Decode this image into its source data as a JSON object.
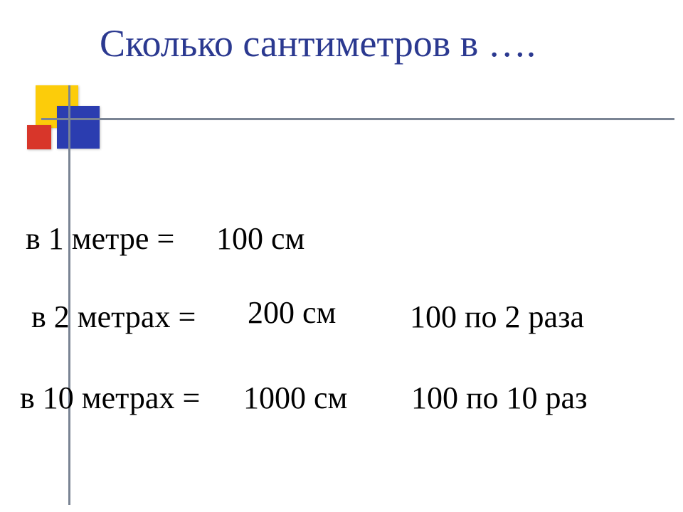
{
  "title": {
    "text": "Сколько сантиметров в ….",
    "color": "#2b3990",
    "fontsize": 54
  },
  "decor": {
    "yellow": "#fccc0a",
    "blue": "#2b3db0",
    "red": "#d8362a",
    "line": "#7a8494"
  },
  "rows": {
    "r1": {
      "lhs": "в 1 метре =",
      "ans": "100 см",
      "note": ""
    },
    "r2": {
      "lhs": "в 2 метрах =",
      "ans": "200 см",
      "note": "100 по 2 раза"
    },
    "r3": {
      "lhs": "в 10 метрах =",
      "ans": "1000 см",
      "note": "100 по 10 раз"
    }
  },
  "text_color": "#000000",
  "row_fontsize": 44
}
